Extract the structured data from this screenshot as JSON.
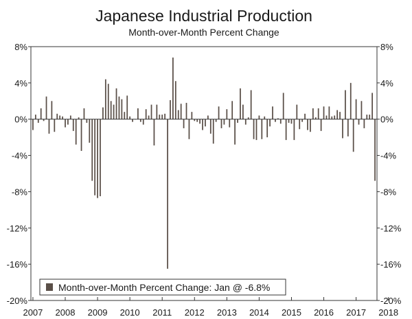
{
  "chart_data": {
    "type": "bar",
    "title": "Japanese Industrial Production",
    "subtitle": "Month-over-Month Percent Change",
    "ylim": [
      -20,
      8
    ],
    "y_ticks": [
      "8%",
      "4%",
      "0%",
      "-4%",
      "-8%",
      "-12%",
      "-16%",
      "-20%"
    ],
    "x_ticks": [
      "2007",
      "2008",
      "2009",
      "2010",
      "2011",
      "2012",
      "2013",
      "2014",
      "2015",
      "2016",
      "2017",
      "2018"
    ],
    "x_start": "2007-01",
    "bar_color": "#5a4f48",
    "grid": false,
    "legend": {
      "position": "bottom-left",
      "entries": [
        {
          "label": "Month-over-Month Percent Change: Jan @ -6.8%",
          "color": "#5a4f48"
        }
      ]
    },
    "series": [
      {
        "values": [
          -1.2,
          0.5,
          -0.4,
          1.2,
          -0.2,
          2.5,
          -1.6,
          2.0,
          -1.4,
          0.6,
          0.4,
          0.3,
          -0.9,
          -0.6,
          0.4,
          -1.3,
          -2.8,
          0.2,
          -3.5,
          1.2,
          -0.4,
          -2.6,
          -6.8,
          -8.4,
          -8.7,
          -8.5,
          1.3,
          4.4,
          3.9,
          2.0,
          1.6,
          3.4,
          2.5,
          2.2,
          0.8,
          2.6,
          0.3,
          -0.3,
          0.0,
          1.2,
          -0.3,
          -0.6,
          1.1,
          0.4,
          1.6,
          -2.9,
          1.6,
          0.5,
          0.5,
          0.6,
          -16.5,
          2.1,
          6.8,
          4.2,
          1.0,
          1.7,
          -1.0,
          1.8,
          -2.2,
          0.8,
          -0.2,
          -0.3,
          -0.5,
          -1.2,
          -0.8,
          0.4,
          -1.6,
          -2.7,
          -0.3,
          1.4,
          -1.0,
          -0.6,
          1.1,
          -0.9,
          2.0,
          -2.8,
          -0.4,
          3.4,
          1.6,
          -0.6,
          0.2,
          3.2,
          -2.2,
          -2.3,
          0.4,
          -2.2,
          0.3,
          -2.0,
          -0.8,
          1.4,
          -0.3,
          0.1,
          -0.5,
          2.9,
          -2.3,
          -0.4,
          -0.5,
          -2.3,
          1.6,
          -1.1,
          -0.3,
          0.6,
          -1.2,
          -1.4,
          1.2,
          0.2,
          1.2,
          -1.3,
          1.4,
          0.4,
          1.4,
          0.3,
          0.4,
          1.0,
          0.8,
          -2.1,
          3.2,
          -1.9,
          4.0,
          -3.6,
          2.2,
          -0.6,
          2.0,
          -1.0,
          0.5,
          0.5,
          2.9,
          -6.8
        ]
      }
    ]
  }
}
